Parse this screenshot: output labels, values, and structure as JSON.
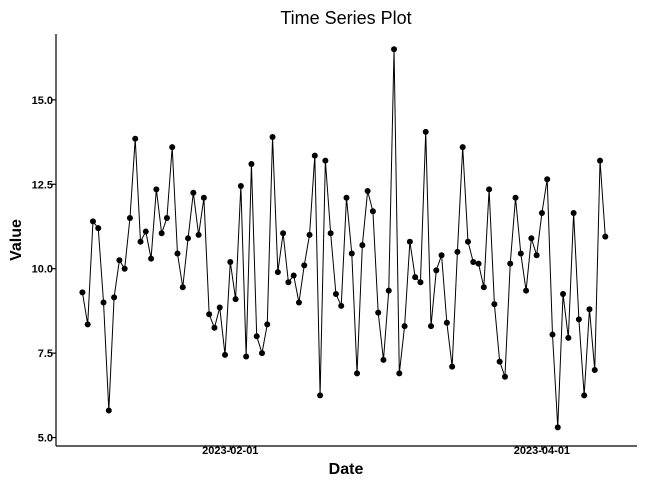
{
  "chart_data": {
    "type": "line",
    "title": "Time Series Plot",
    "xlabel": "Date",
    "ylabel": "Value",
    "x_tick_labels": [
      "2023-02-01",
      "2023-04-01"
    ],
    "y_tick_labels": [
      "5.0",
      "7.5",
      "10.0",
      "12.5",
      "15.0"
    ],
    "y_ticks": [
      5.0,
      7.5,
      10.0,
      12.5,
      15.0
    ],
    "x_ticks": [
      "2023-02-01",
      "2023-04-01"
    ],
    "xlim": [
      "2022-12-30",
      "2023-04-19"
    ],
    "ylim": [
      4.75,
      16.95
    ],
    "grid": false,
    "legend": "none",
    "marker_color": "#000000",
    "line_color": "#000000",
    "series": [
      {
        "x": [
          "2023-01-04",
          "2023-01-05",
          "2023-01-06",
          "2023-01-07",
          "2023-01-08",
          "2023-01-09",
          "2023-01-10",
          "2023-01-11",
          "2023-01-12",
          "2023-01-13",
          "2023-01-14",
          "2023-01-15",
          "2023-01-16",
          "2023-01-17",
          "2023-01-18",
          "2023-01-19",
          "2023-01-20",
          "2023-01-21",
          "2023-01-22",
          "2023-01-23",
          "2023-01-24",
          "2023-01-25",
          "2023-01-26",
          "2023-01-27",
          "2023-01-28",
          "2023-01-29",
          "2023-01-30",
          "2023-01-31",
          "2023-02-01",
          "2023-02-02",
          "2023-02-03",
          "2023-02-04",
          "2023-02-05",
          "2023-02-06",
          "2023-02-07",
          "2023-02-08",
          "2023-02-09",
          "2023-02-10",
          "2023-02-11",
          "2023-02-12",
          "2023-02-13",
          "2023-02-14",
          "2023-02-15",
          "2023-02-16",
          "2023-02-17",
          "2023-02-18",
          "2023-02-19",
          "2023-02-20",
          "2023-02-21",
          "2023-02-22",
          "2023-02-23",
          "2023-02-24",
          "2023-02-25",
          "2023-02-26",
          "2023-02-27",
          "2023-02-28",
          "2023-03-01",
          "2023-03-02",
          "2023-03-03",
          "2023-03-04",
          "2023-03-05",
          "2023-03-06",
          "2023-03-07",
          "2023-03-08",
          "2023-03-09",
          "2023-03-10",
          "2023-03-11",
          "2023-03-12",
          "2023-03-13",
          "2023-03-14",
          "2023-03-15",
          "2023-03-16",
          "2023-03-17",
          "2023-03-18",
          "2023-03-19",
          "2023-03-20",
          "2023-03-21",
          "2023-03-22",
          "2023-03-23",
          "2023-03-24",
          "2023-03-25",
          "2023-03-26",
          "2023-03-27",
          "2023-03-28",
          "2023-03-29",
          "2023-03-30",
          "2023-03-31",
          "2023-04-01",
          "2023-04-02",
          "2023-04-03",
          "2023-04-04",
          "2023-04-05",
          "2023-04-06",
          "2023-04-07",
          "2023-04-08",
          "2023-04-09",
          "2023-04-10",
          "2023-04-11",
          "2023-04-12",
          "2023-04-13"
        ],
        "values": [
          9.3,
          8.35,
          11.4,
          11.2,
          9.0,
          5.8,
          9.15,
          10.25,
          10.0,
          11.5,
          13.85,
          10.8,
          11.1,
          10.3,
          12.35,
          11.05,
          11.5,
          13.6,
          10.45,
          9.45,
          10.9,
          12.25,
          11.0,
          12.1,
          8.65,
          8.25,
          8.85,
          7.45,
          10.2,
          9.1,
          12.45,
          7.4,
          13.1,
          8.0,
          7.5,
          8.35,
          13.9,
          9.9,
          11.05,
          9.6,
          9.8,
          9.0,
          10.1,
          11.0,
          13.35,
          6.25,
          13.2,
          11.05,
          9.25,
          8.9,
          12.1,
          10.45,
          6.9,
          10.7,
          12.3,
          11.7,
          8.7,
          7.3,
          9.35,
          16.5,
          6.9,
          8.3,
          10.8,
          9.75,
          9.6,
          14.05,
          8.3,
          9.95,
          10.4,
          8.4,
          7.1,
          10.5,
          13.6,
          10.8,
          10.2,
          10.15,
          9.45,
          12.35,
          8.95,
          7.25,
          6.8,
          10.15,
          12.1,
          10.45,
          9.35,
          10.9,
          10.4,
          11.65,
          12.65,
          8.05,
          5.3,
          9.25,
          7.95,
          11.65,
          8.5,
          6.25,
          8.8,
          7.0,
          13.2,
          10.95
        ]
      }
    ]
  }
}
